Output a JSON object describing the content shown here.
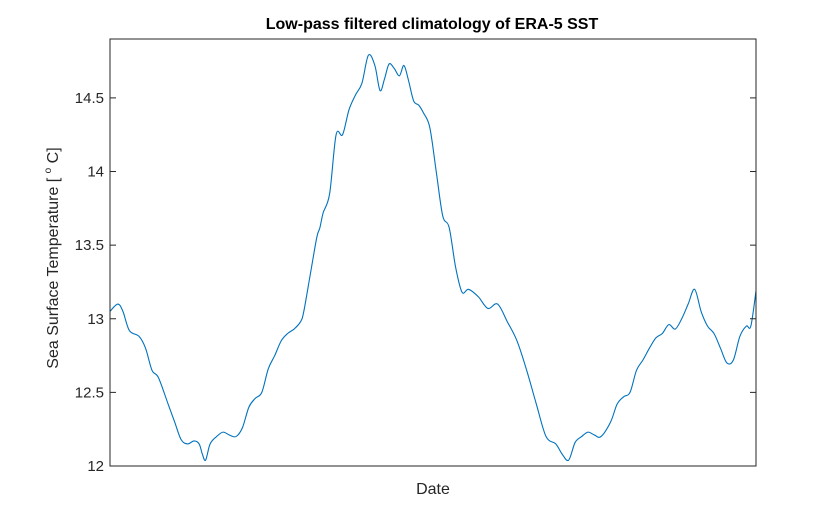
{
  "chart_data": {
    "type": "line",
    "title": "Low-pass filtered climatology of ERA-5 SST",
    "xlabel": "Date",
    "ylabel": "Sea Surface Temperature [",
    "ylabel_sup": "o",
    "ylabel_unit": "C]",
    "ylim": [
      12,
      14.9
    ],
    "yticks": [
      12,
      12.5,
      13,
      13.5,
      14,
      14.5
    ],
    "ytick_labels": [
      "12",
      "12.5",
      "13",
      "13.5",
      "14",
      "14.5"
    ],
    "xlim": [
      0,
      1
    ],
    "grid": false,
    "line_color": "#0072BD",
    "series": [
      {
        "x": [
          0,
          0.012,
          0.02,
          0.03,
          0.045,
          0.055,
          0.065,
          0.075,
          0.09,
          0.1,
          0.11,
          0.12,
          0.13,
          0.138,
          0.143,
          0.148,
          0.155,
          0.165,
          0.175,
          0.185,
          0.195,
          0.205,
          0.215,
          0.225,
          0.235,
          0.245,
          0.255,
          0.265,
          0.275,
          0.285,
          0.295,
          0.3,
          0.31,
          0.32,
          0.325,
          0.33,
          0.34,
          0.35,
          0.36,
          0.37,
          0.38,
          0.39,
          0.4,
          0.41,
          0.418,
          0.425,
          0.432,
          0.44,
          0.448,
          0.455,
          0.462,
          0.47,
          0.478,
          0.485,
          0.495,
          0.505,
          0.515,
          0.525,
          0.535,
          0.545,
          0.555,
          0.57,
          0.585,
          0.6,
          0.615,
          0.63,
          0.645,
          0.66,
          0.675,
          0.69,
          0.7,
          0.71,
          0.72,
          0.73,
          0.74,
          0.75,
          0.76,
          0.775,
          0.785,
          0.795,
          0.805,
          0.815,
          0.825,
          0.835,
          0.845,
          0.855,
          0.865,
          0.875,
          0.885,
          0.895,
          0.905,
          0.915,
          0.925,
          0.935,
          0.945,
          0.955,
          0.965,
          0.975,
          0.985,
          0.992,
          1.0
        ],
        "y": [
          13.05,
          13.1,
          13.05,
          12.92,
          12.88,
          12.8,
          12.65,
          12.6,
          12.42,
          12.3,
          12.18,
          12.15,
          12.17,
          12.15,
          12.08,
          12.04,
          12.15,
          12.2,
          12.23,
          12.21,
          12.2,
          12.26,
          12.4,
          12.46,
          12.5,
          12.66,
          12.75,
          12.85,
          12.9,
          12.93,
          12.98,
          13.05,
          13.3,
          13.55,
          13.62,
          13.72,
          13.85,
          14.25,
          14.25,
          14.42,
          14.52,
          14.6,
          14.79,
          14.72,
          14.55,
          14.63,
          14.73,
          14.7,
          14.65,
          14.72,
          14.62,
          14.48,
          14.45,
          14.4,
          14.3,
          14.0,
          13.7,
          13.62,
          13.35,
          13.18,
          13.2,
          13.15,
          13.07,
          13.1,
          12.98,
          12.85,
          12.65,
          12.42,
          12.2,
          12.15,
          12.08,
          12.04,
          12.16,
          12.2,
          12.23,
          12.21,
          12.2,
          12.3,
          12.42,
          12.47,
          12.5,
          12.65,
          12.72,
          12.8,
          12.87,
          12.9,
          12.96,
          12.93,
          13.0,
          13.1,
          13.2,
          13.05,
          12.95,
          12.9,
          12.8,
          12.7,
          12.72,
          12.88,
          12.95,
          12.95,
          13.19
        ]
      }
    ]
  }
}
